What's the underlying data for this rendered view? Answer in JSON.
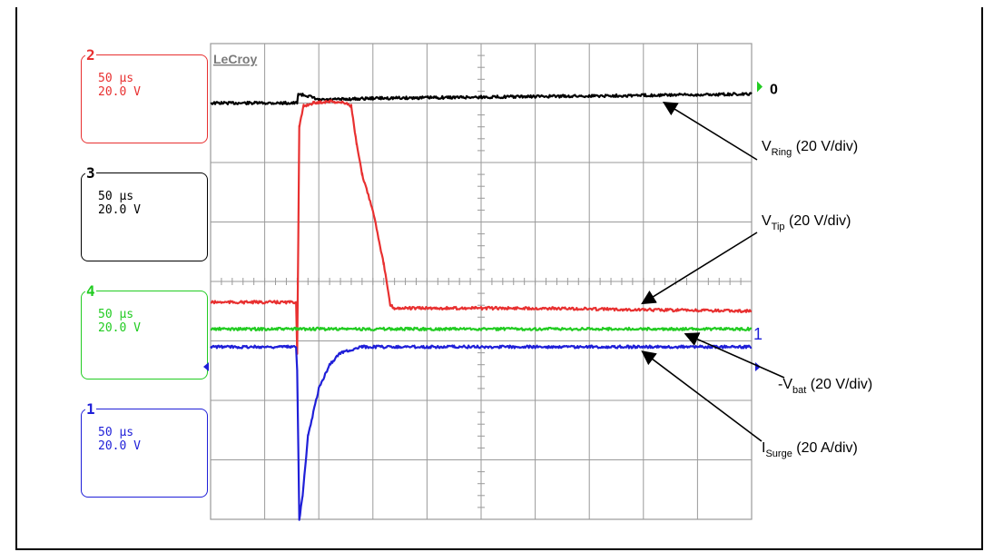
{
  "caption": "",
  "brand": "LeCroy",
  "colors": {
    "ch1": "#1f1fd8",
    "ch2": "#e83030",
    "ch3": "#000000",
    "ch4": "#22cc22",
    "grid": "#9a9a9a"
  },
  "channels": [
    {
      "num": "2",
      "timebase": "50 µs",
      "volts": "20.0 V",
      "color": "#e83030"
    },
    {
      "num": "3",
      "timebase": "50 µs",
      "volts": "20.0 V",
      "color": "#000000"
    },
    {
      "num": "4",
      "timebase": "50 µs",
      "volts": "20.0 V",
      "color": "#22cc22"
    },
    {
      "num": "1",
      "timebase": "50 µs",
      "volts": "20.0 V",
      "color": "#1f1fd8"
    }
  ],
  "zero_marker": "0",
  "ch1_marker": "1",
  "chart_data": {
    "type": "line",
    "xlabel": "",
    "ylabel": "",
    "xlim": [
      0,
      500
    ],
    "ylim": [
      -4,
      4
    ],
    "x_unit": "µs",
    "y_unit": "div",
    "grid": true,
    "grid_divisions": {
      "x": 10,
      "y": 8
    },
    "series": [
      {
        "name": "V",
        "sub": "Ring",
        "scale": "(20 V/div)",
        "color": "#000000",
        "points": [
          [
            0,
            3.0
          ],
          [
            80,
            3.0
          ],
          [
            81,
            3.15
          ],
          [
            90,
            3.12
          ],
          [
            100,
            3.05
          ],
          [
            150,
            3.08
          ],
          [
            250,
            3.1
          ],
          [
            350,
            3.12
          ],
          [
            500,
            3.15
          ]
        ]
      },
      {
        "name": "V",
        "sub": "Tip",
        "scale": "(20 V/div)",
        "color": "#e83030",
        "points": [
          [
            0,
            -0.35
          ],
          [
            79,
            -0.35
          ],
          [
            80,
            -1.2
          ],
          [
            82,
            2.6
          ],
          [
            86,
            2.95
          ],
          [
            95,
            3.0
          ],
          [
            110,
            3.03
          ],
          [
            125,
            3.0
          ],
          [
            130,
            2.95
          ],
          [
            135,
            2.3
          ],
          [
            140,
            1.8
          ],
          [
            150,
            1.2
          ],
          [
            160,
            0.3
          ],
          [
            166,
            -0.4
          ],
          [
            170,
            -0.45
          ],
          [
            300,
            -0.45
          ],
          [
            500,
            -0.5
          ]
        ]
      },
      {
        "name": "-V",
        "sub": "bat",
        "scale": "(20 V/div)",
        "color": "#22cc22",
        "points": [
          [
            0,
            -0.8
          ],
          [
            500,
            -0.8
          ]
        ]
      },
      {
        "name": "I",
        "sub": "Surge",
        "scale": "(20 A/div)",
        "color": "#1f1fd8",
        "points": [
          [
            0,
            -1.1
          ],
          [
            79,
            -1.1
          ],
          [
            80,
            -1.5
          ],
          [
            82,
            -4.0
          ],
          [
            85,
            -3.6
          ],
          [
            90,
            -2.6
          ],
          [
            100,
            -1.8
          ],
          [
            110,
            -1.4
          ],
          [
            120,
            -1.2
          ],
          [
            140,
            -1.1
          ],
          [
            500,
            -1.1
          ]
        ]
      }
    ]
  }
}
